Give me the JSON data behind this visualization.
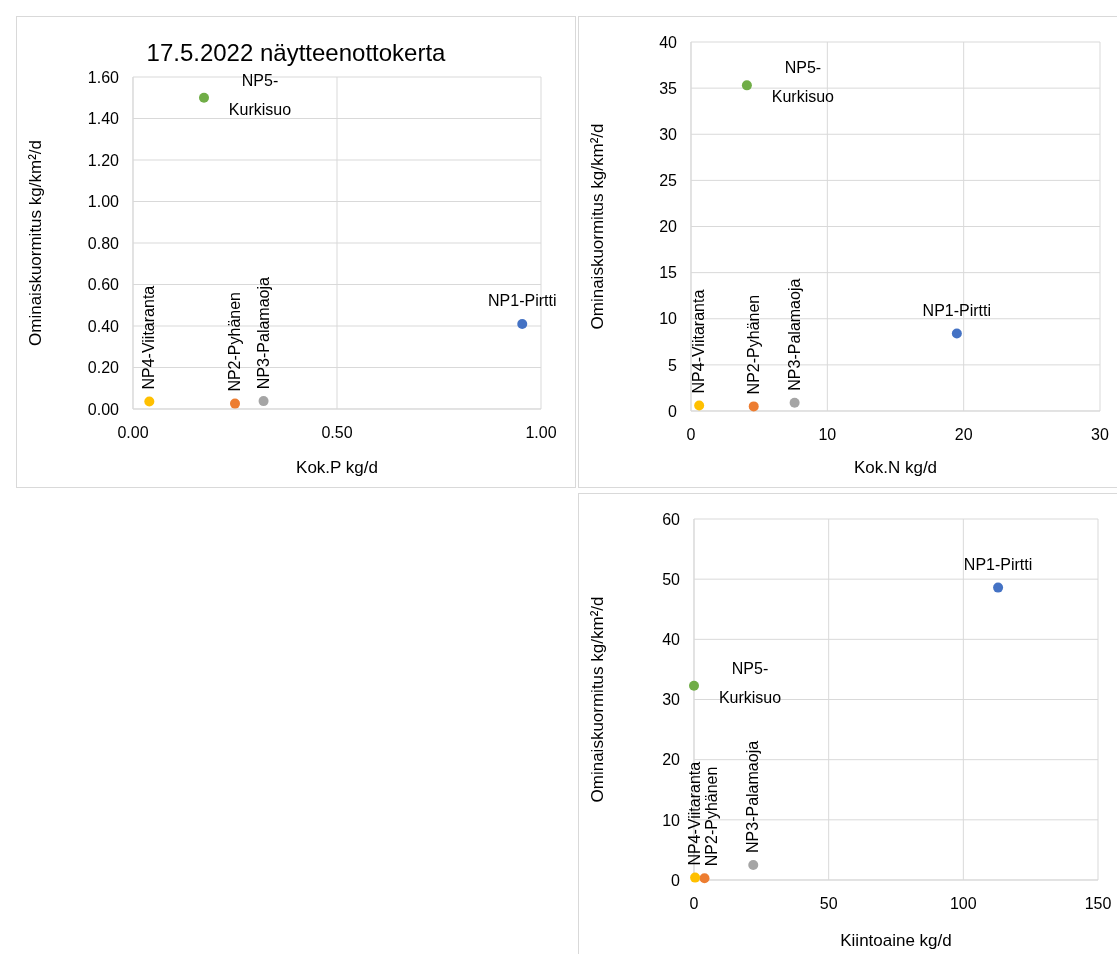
{
  "chart_data": [
    {
      "type": "scatter",
      "title": "17.5.2022 näytteenottokerta",
      "xlabel": "Kok.P kg/d",
      "ylabel": "Ominaiskuormitus kg/km²/d",
      "xlim": [
        0,
        1
      ],
      "ylim": [
        0,
        1.6
      ],
      "xticks": [
        {
          "value": 0,
          "label": "0.00"
        },
        {
          "value": 0.5,
          "label": "0.50"
        },
        {
          "value": 1,
          "label": "1.00"
        }
      ],
      "yticks": [
        {
          "value": 0,
          "label": "0.00"
        },
        {
          "value": 0.2,
          "label": "0.20"
        },
        {
          "value": 0.4,
          "label": "0.40"
        },
        {
          "value": 0.6,
          "label": "0.60"
        },
        {
          "value": 0.8,
          "label": "0.80"
        },
        {
          "value": 1,
          "label": "1.00"
        },
        {
          "value": 1.2,
          "label": "1.20"
        },
        {
          "value": 1.4,
          "label": "1.40"
        },
        {
          "value": 1.6,
          "label": "1.60"
        }
      ],
      "grid": true,
      "marker": "circle",
      "legend": false,
      "series": [
        {
          "name": "NP1-Pirtti",
          "color": "#4472c4",
          "x": [
            0.954
          ],
          "values": [
            0.41
          ]
        },
        {
          "name": "NP2-Pyhänen",
          "color": "#ed7d31",
          "x": [
            0.25
          ],
          "values": [
            0.026
          ]
        },
        {
          "name": "NP3-Palamaoja",
          "color": "#a5a5a5",
          "x": [
            0.32
          ],
          "values": [
            0.038
          ]
        },
        {
          "name": "NP4-Viitaranta",
          "color": "#ffc000",
          "x": [
            0.04
          ],
          "values": [
            0.036
          ]
        },
        {
          "name": "NP5-Kurkisuo",
          "color": "#70ad47",
          "x": [
            0.174
          ],
          "values": [
            1.5
          ]
        }
      ]
    },
    {
      "type": "scatter",
      "xlabel": "Kok.N kg/d",
      "ylabel": "Ominaiskuormitus kg/km²/d",
      "xlim": [
        0,
        30
      ],
      "ylim": [
        0,
        40
      ],
      "xticks": [
        0,
        10,
        20,
        30
      ],
      "yticks": [
        0,
        5,
        10,
        15,
        20,
        25,
        30,
        35,
        40
      ],
      "grid": true,
      "marker": "circle",
      "legend": false,
      "series": [
        {
          "name": "NP1-Pirtti",
          "color": "#4472c4",
          "x": [
            19.5
          ],
          "values": [
            8.4
          ]
        },
        {
          "name": "NP2-Pyhänen",
          "color": "#ed7d31",
          "x": [
            4.6
          ],
          "values": [
            0.5
          ]
        },
        {
          "name": "NP3-Palamaoja",
          "color": "#a5a5a5",
          "x": [
            7.6
          ],
          "values": [
            0.9
          ]
        },
        {
          "name": "NP4-Viitaranta",
          "color": "#ffc000",
          "x": [
            0.6
          ],
          "values": [
            0.6
          ]
        },
        {
          "name": "NP5-Kurkisuo",
          "color": "#70ad47",
          "x": [
            4.1
          ],
          "values": [
            35.3
          ]
        }
      ]
    },
    {
      "type": "scatter",
      "xlabel": "Kiintoaine kg/d",
      "ylabel": "Ominaiskuormitus kg/km²/d",
      "xlim": [
        0,
        150
      ],
      "ylim": [
        0,
        60
      ],
      "xticks": [
        0,
        50,
        100,
        150
      ],
      "yticks": [
        0,
        10,
        20,
        30,
        40,
        50,
        60
      ],
      "grid": true,
      "marker": "circle",
      "legend": false,
      "series": [
        {
          "name": "NP1-Pirtti",
          "color": "#4472c4",
          "x": [
            112.9
          ],
          "values": [
            48.6
          ]
        },
        {
          "name": "NP2-Pyhänen",
          "color": "#ed7d31",
          "x": [
            3.9
          ],
          "values": [
            0.3
          ]
        },
        {
          "name": "NP3-Palamaoja",
          "color": "#a5a5a5",
          "x": [
            22
          ],
          "values": [
            2.5
          ]
        },
        {
          "name": "NP4-Viitaranta",
          "color": "#ffc000",
          "x": [
            0.4
          ],
          "values": [
            0.4
          ]
        },
        {
          "name": "NP5-Kurkisuo",
          "color": "#70ad47",
          "x": [
            0
          ],
          "values": [
            32.3
          ]
        }
      ]
    }
  ]
}
